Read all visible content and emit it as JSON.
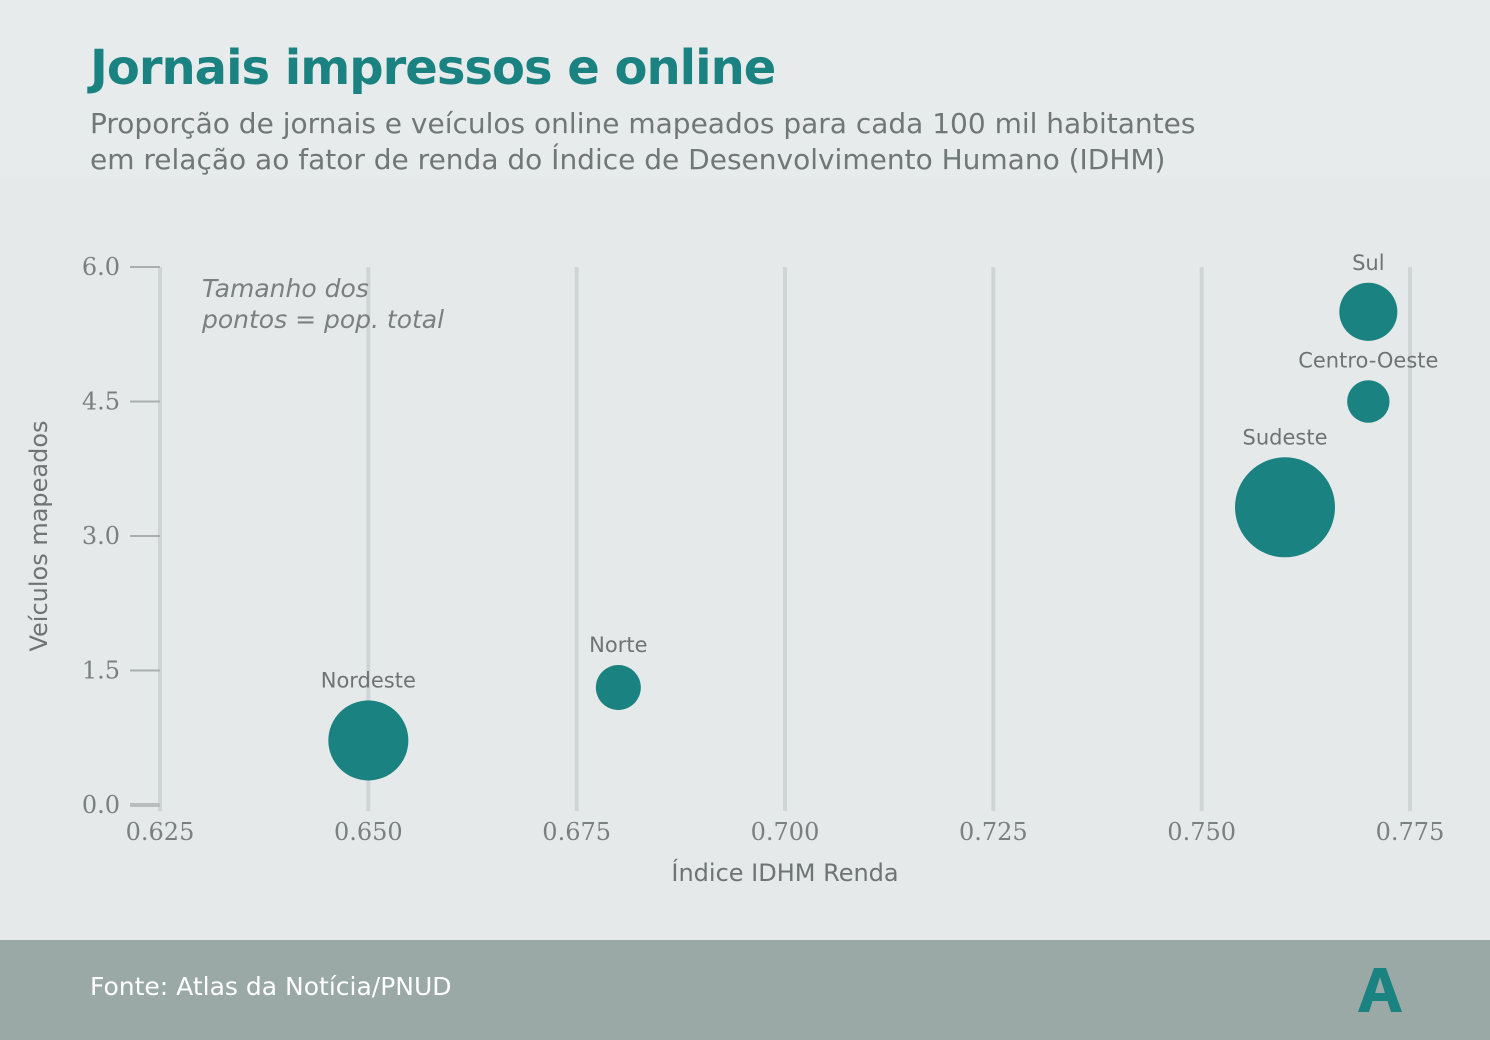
{
  "header": {
    "title": "Jornais impressos e online",
    "subtitle_line1": "Proporção de jornais e veículos online mapeados para cada 100 mil habitantes",
    "subtitle_line2": "em relação ao fator de renda do Índice de Desenvolvimento Humano (IDHM)"
  },
  "footer": {
    "source": "Fonte: Atlas da Notícia/PNUD",
    "logo_icon": "atlas-a-logo-icon"
  },
  "colors": {
    "accent": "#1a8280",
    "grid": "#cfd4d4",
    "background": "#e5e9e9",
    "footer": "#9aa8a6"
  },
  "chart_data": {
    "type": "scatter",
    "title": "Jornais impressos e online",
    "xlabel": "Índice IDHM Renda",
    "ylabel": "Veículos mapeados",
    "xlim": [
      0.625,
      0.775
    ],
    "ylim": [
      0,
      6
    ],
    "x_ticks": [
      0.625,
      0.65,
      0.675,
      0.7,
      0.725,
      0.75,
      0.775
    ],
    "x_tick_labels": [
      "0.625",
      "0.650",
      "0.675",
      "0.700",
      "0.725",
      "0.750",
      "0.775"
    ],
    "y_ticks": [
      0,
      1.5,
      3,
      4.5,
      6
    ],
    "y_tick_labels": [
      "0.0",
      "1.5",
      "3.0",
      "4.5",
      "6.0"
    ],
    "grid": "vertical",
    "size_note_line1": "Tamanho dos",
    "size_note_line2": "pontos = pop. total",
    "points": [
      {
        "label": "Nordeste",
        "x": 0.65,
        "y": 0.72,
        "size": 57
      },
      {
        "label": "Norte",
        "x": 0.68,
        "y": 1.31,
        "size": 18
      },
      {
        "label": "Sudeste",
        "x": 0.76,
        "y": 3.32,
        "size": 89
      },
      {
        "label": "Centro-Oeste",
        "x": 0.77,
        "y": 4.5,
        "size": 16
      },
      {
        "label": "Sul",
        "x": 0.77,
        "y": 5.5,
        "size": 30
      }
    ]
  }
}
